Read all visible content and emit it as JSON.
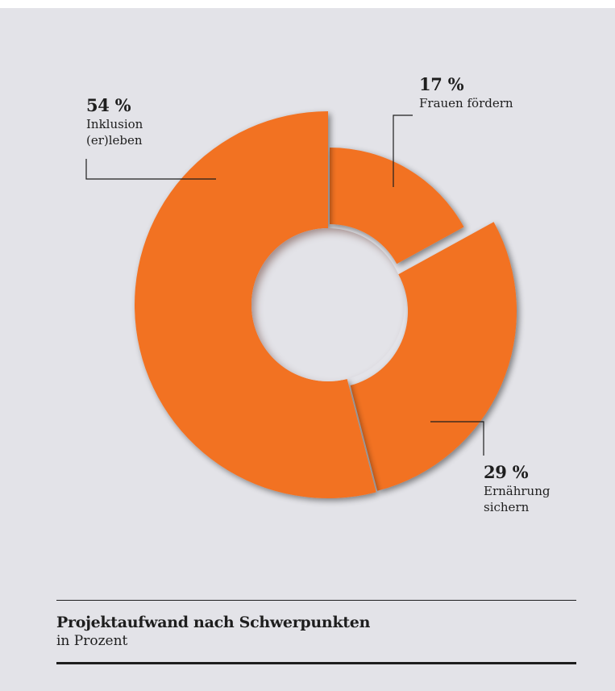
{
  "chart_data": {
    "type": "pie",
    "variant": "donut",
    "slices": [
      {
        "value": 54,
        "value_label": "54 %",
        "label": "Inklusion (er)leben",
        "label_lines": [
          "Inklusion",
          "(er)leben"
        ]
      },
      {
        "value": 17,
        "value_label": "17 %",
        "label": "Frauen fördern",
        "label_lines": [
          "Frauen fördern"
        ]
      },
      {
        "value": 29,
        "value_label": "29 %",
        "label": "Ernährung sichern",
        "label_lines": [
          "Ernährung",
          "sichern"
        ]
      }
    ],
    "title": "Projektaufwand nach Schwerpunkten",
    "subtitle": "in Prozent",
    "colors": {
      "slice": "#f27224",
      "shadow": "#b94e10",
      "hole": "#e3e3e8",
      "background": "#e3e3e8",
      "leader": "#1e1e1e"
    }
  }
}
